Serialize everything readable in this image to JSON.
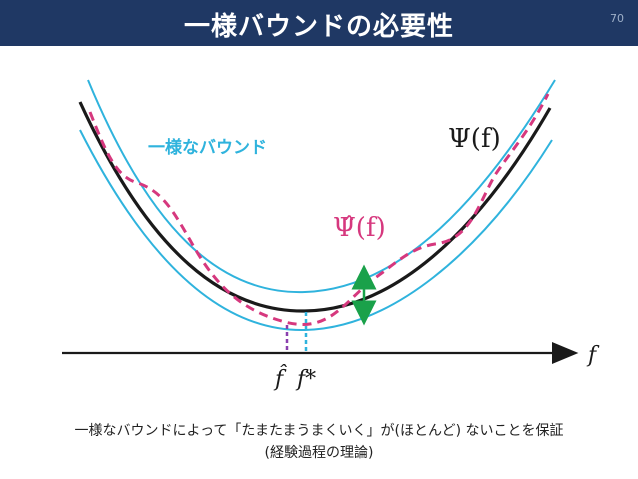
{
  "header": {
    "title": "一様バウンドの必要性",
    "page_number": "70"
  },
  "diagram": {
    "band_label": "一様なバウンド",
    "psi_label": "Ψ(f)",
    "psi_hat_label": "Ψ̂(f)",
    "x_axis_label": "f",
    "f_hat_label": "f̂",
    "f_star_label": "f*",
    "colors": {
      "band": "#2fb3dd",
      "true_curve": "#1a1a1a",
      "empirical_curve": "#d6387e",
      "gap_arrow": "#1aa14a",
      "f_hat_marker": "#8a3fae",
      "f_star_marker": "#2fb3dd"
    }
  },
  "caption": {
    "line1": "一様なバウンドによって「たまたまうまくいく」が(ほとんど) ないことを保証",
    "line2": "(経験過程の理論)"
  }
}
